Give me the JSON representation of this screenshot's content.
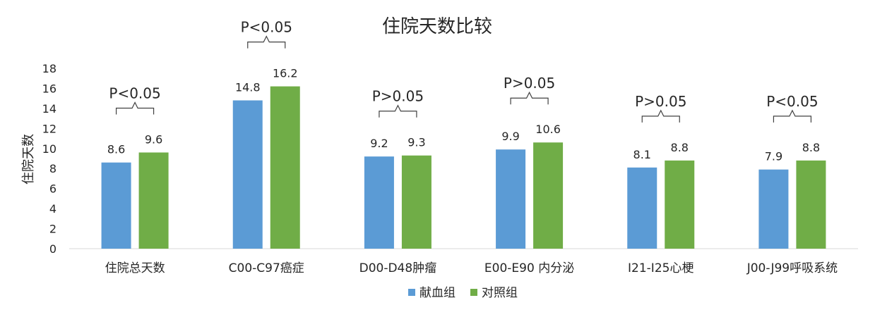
{
  "chart_data": {
    "type": "bar",
    "title": "住院天数比较",
    "xlabel": "",
    "ylabel": "住院天数",
    "ylim": [
      0,
      18
    ],
    "yticks": [
      0,
      2,
      4,
      6,
      8,
      10,
      12,
      14,
      16,
      18
    ],
    "grid": false,
    "legend_position": "bottom",
    "categories": [
      "住院总天数",
      "C00-C97癌症",
      "D00-D48肿瘤",
      "E00-E90 内分泌",
      "I21-I25心梗",
      "J00-J99呼吸系统"
    ],
    "series": [
      {
        "name": "献血组",
        "color": "#5B9BD5",
        "values": [
          8.6,
          14.8,
          9.2,
          9.9,
          8.1,
          7.9
        ]
      },
      {
        "name": "对照组",
        "color": "#70AD47",
        "values": [
          9.6,
          16.2,
          9.3,
          10.6,
          8.8,
          8.8
        ]
      }
    ],
    "annotations": [
      "P<0.05",
      "P<0.05",
      "P>0.05",
      "P>0.05",
      "P>0.05",
      "P<0.05"
    ]
  }
}
